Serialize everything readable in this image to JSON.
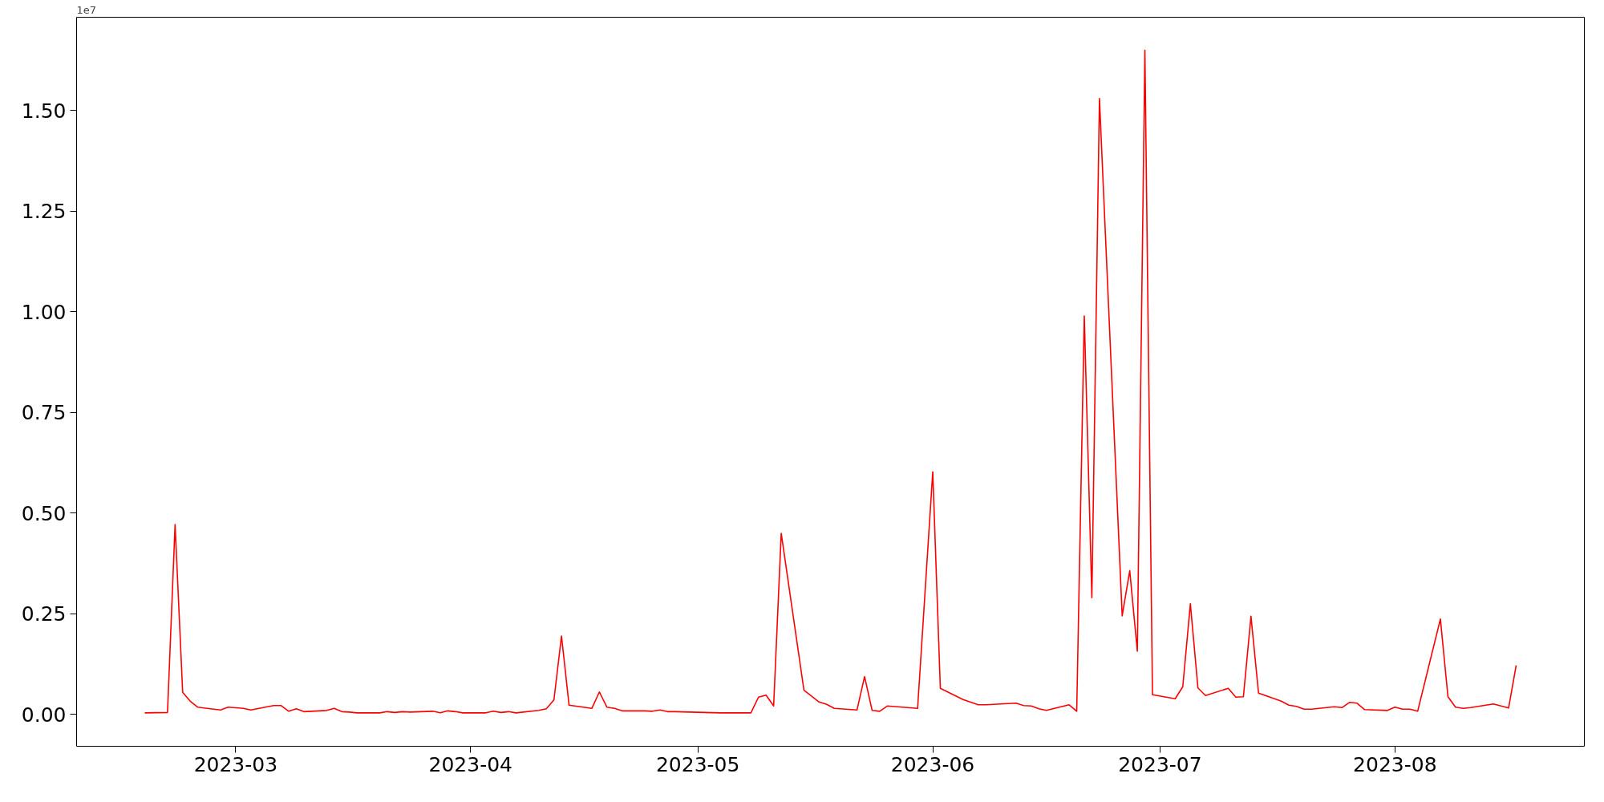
{
  "chart_data": {
    "type": "line",
    "x": [
      "2023-02-17",
      "2023-02-20",
      "2023-02-21",
      "2023-02-22",
      "2023-02-23",
      "2023-02-24",
      "2023-02-27",
      "2023-02-28",
      "2023-03-02",
      "2023-03-03",
      "2023-03-06",
      "2023-03-07",
      "2023-03-08",
      "2023-03-09",
      "2023-03-10",
      "2023-03-13",
      "2023-03-14",
      "2023-03-15",
      "2023-03-16",
      "2023-03-17",
      "2023-03-20",
      "2023-03-21",
      "2023-03-22",
      "2023-03-23",
      "2023-03-24",
      "2023-03-27",
      "2023-03-28",
      "2023-03-29",
      "2023-03-30",
      "2023-03-31",
      "2023-04-03",
      "2023-04-04",
      "2023-04-05",
      "2023-04-06",
      "2023-04-07",
      "2023-04-10",
      "2023-04-11",
      "2023-04-12",
      "2023-04-13",
      "2023-04-14",
      "2023-04-17",
      "2023-04-18",
      "2023-04-19",
      "2023-04-20",
      "2023-04-21",
      "2023-04-24",
      "2023-04-25",
      "2023-04-26",
      "2023-04-27",
      "2023-04-28",
      "2023-05-04",
      "2023-05-08",
      "2023-05-09",
      "2023-05-10",
      "2023-05-11",
      "2023-05-12",
      "2023-05-15",
      "2023-05-17",
      "2023-05-18",
      "2023-05-19",
      "2023-05-22",
      "2023-05-23",
      "2023-05-24",
      "2023-05-25",
      "2023-05-26",
      "2023-05-30",
      "2023-06-01",
      "2023-06-02",
      "2023-06-05",
      "2023-06-07",
      "2023-06-08",
      "2023-06-12",
      "2023-06-13",
      "2023-06-14",
      "2023-06-15",
      "2023-06-16",
      "2023-06-19",
      "2023-06-20",
      "2023-06-21",
      "2023-06-22",
      "2023-06-23",
      "2023-06-26",
      "2023-06-27",
      "2023-06-28",
      "2023-06-29",
      "2023-06-30",
      "2023-07-03",
      "2023-07-04",
      "2023-07-05",
      "2023-07-06",
      "2023-07-07",
      "2023-07-10",
      "2023-07-11",
      "2023-07-12",
      "2023-07-13",
      "2023-07-14",
      "2023-07-17",
      "2023-07-18",
      "2023-07-19",
      "2023-07-20",
      "2023-07-21",
      "2023-07-24",
      "2023-07-25",
      "2023-07-26",
      "2023-07-27",
      "2023-07-28",
      "2023-07-31",
      "2023-08-01",
      "2023-08-02",
      "2023-08-03",
      "2023-08-04",
      "2023-08-07",
      "2023-08-08",
      "2023-08-09",
      "2023-08-10",
      "2023-08-11",
      "2023-08-14",
      "2023-08-16",
      "2023-08-17"
    ],
    "series": [
      {
        "color": "#ff0000",
        "values": [
          0.004,
          0.005,
          0.472,
          0.055,
          0.033,
          0.018,
          0.011,
          0.018,
          0.015,
          0.011,
          0.022,
          0.022,
          0.008,
          0.014,
          0.007,
          0.01,
          0.015,
          0.007,
          0.006,
          0.004,
          0.004,
          0.007,
          0.005,
          0.007,
          0.006,
          0.008,
          0.004,
          0.009,
          0.007,
          0.004,
          0.004,
          0.008,
          0.005,
          0.007,
          0.004,
          0.01,
          0.014,
          0.036,
          0.195,
          0.023,
          0.015,
          0.056,
          0.018,
          0.015,
          0.009,
          0.009,
          0.008,
          0.011,
          0.007,
          0.007,
          0.004,
          0.004,
          0.043,
          0.048,
          0.021,
          0.45,
          0.06,
          0.031,
          0.025,
          0.015,
          0.011,
          0.094,
          0.01,
          0.008,
          0.021,
          0.015,
          0.603,
          0.065,
          0.037,
          0.024,
          0.024,
          0.028,
          0.022,
          0.021,
          0.014,
          0.01,
          0.024,
          0.008,
          0.99,
          0.29,
          1.53,
          0.245,
          0.357,
          0.157,
          1.65,
          0.049,
          0.039,
          0.069,
          0.275,
          0.066,
          0.047,
          0.065,
          0.043,
          0.044,
          0.244,
          0.053,
          0.033,
          0.023,
          0.02,
          0.013,
          0.013,
          0.019,
          0.017,
          0.03,
          0.028,
          0.012,
          0.01,
          0.018,
          0.013,
          0.013,
          0.008,
          0.237,
          0.044,
          0.018,
          0.015,
          0.017,
          0.026,
          0.016,
          0.122
        ]
      }
    ],
    "xlim": [
      "2023-02-08",
      "2023-08-26"
    ],
    "xticks": [
      {
        "value": "2023-03-01",
        "label": "2023-03"
      },
      {
        "value": "2023-04-01",
        "label": "2023-04"
      },
      {
        "value": "2023-05-01",
        "label": "2023-05"
      },
      {
        "value": "2023-06-01",
        "label": "2023-06"
      },
      {
        "value": "2023-07-01",
        "label": "2023-07"
      },
      {
        "value": "2023-08-01",
        "label": "2023-08"
      }
    ],
    "ylim": [
      -0.079,
      1.732
    ],
    "yticks": [
      {
        "value": 0,
        "label": "0.00"
      },
      {
        "value": 0.25,
        "label": "0.25"
      },
      {
        "value": 0.5,
        "label": "0.50"
      },
      {
        "value": 0.75,
        "label": "0.75"
      },
      {
        "value": 1,
        "label": "1.00"
      },
      {
        "value": 1.25,
        "label": "1.25"
      },
      {
        "value": 1.5,
        "label": "1.50"
      }
    ],
    "annotations": [
      "1e7"
    ],
    "grid": false,
    "marker": "none",
    "line_style": "solid"
  }
}
